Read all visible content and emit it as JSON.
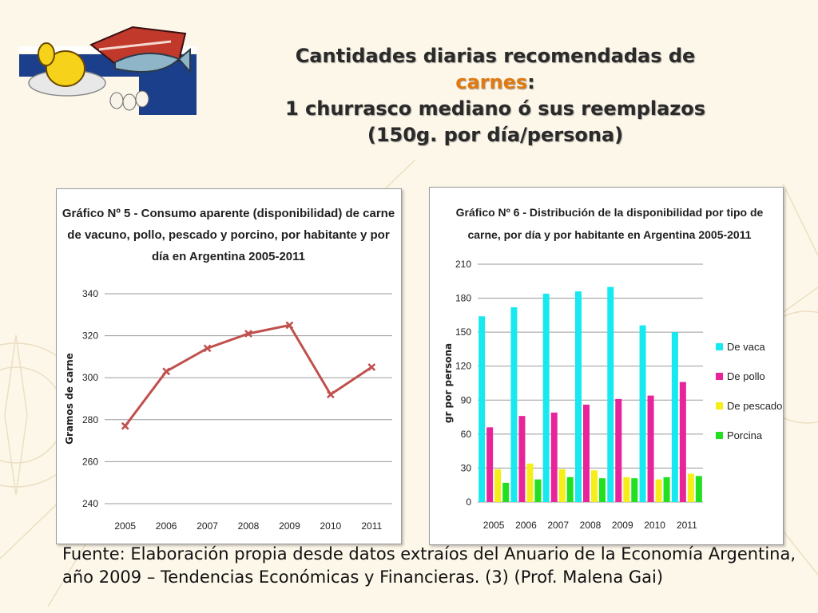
{
  "slide": {
    "title_line1": "Cantidades diarias recomendadas de",
    "title_accent": "carnes",
    "title_colon": ":",
    "title_line3": "1 churrasco mediano ó sus reemplazos",
    "title_line4": "(150g. por día/persona)",
    "source": "Fuente: Elaboración propia desde datos extraíos del Anuario de la Economía Argentina, año 2009 – Tendencias Económicas y Financieras. (3)  (Prof. Malena Gai)"
  },
  "colors": {
    "title_accent": "#e07a10",
    "line_series": "#c0504d",
    "de_vaca": "#18e8f0",
    "de_pollo": "#e8249a",
    "de_pescado": "#f5ee18",
    "porcina": "#20e020",
    "gridline": "#9a9a9a"
  },
  "chart_data": [
    {
      "type": "line",
      "title_lines": [
        "Gráfico Nº 5 - Consumo aparente (disponibilidad) de carne",
        "de vacuno, pollo, pescado y porcino, por habitante y por",
        "día en Argentina 2005-2011"
      ],
      "xlabel": "",
      "ylabel": "Gramos de carne",
      "categories": [
        "2005",
        "2006",
        "2007",
        "2008",
        "2009",
        "2010",
        "2011"
      ],
      "values": [
        277,
        303,
        314,
        321,
        325,
        292,
        305
      ],
      "ylim": [
        240,
        340
      ],
      "yticks": [
        240,
        260,
        280,
        300,
        320,
        340
      ],
      "grid": true
    },
    {
      "type": "bar",
      "title_lines": [
        "Gráfico Nº 6 - Distribución de la disponibilidad por tipo de",
        "carne, por día y por habitante en Argentina 2005-2011"
      ],
      "xlabel": "",
      "ylabel": "gr por persona",
      "categories": [
        "2005",
        "2006",
        "2007",
        "2008",
        "2009",
        "2010",
        "2011"
      ],
      "ylim": [
        0,
        210
      ],
      "yticks": [
        0,
        30,
        60,
        90,
        120,
        150,
        180,
        210
      ],
      "grid": true,
      "legend_position": "right",
      "series": [
        {
          "name": "De vaca",
          "values": [
            164,
            172,
            184,
            186,
            190,
            156,
            150
          ]
        },
        {
          "name": "De pollo",
          "values": [
            66,
            76,
            79,
            86,
            91,
            94,
            106
          ]
        },
        {
          "name": "De pescado",
          "values": [
            29,
            34,
            29,
            28,
            22,
            20,
            25
          ]
        },
        {
          "name": "Porcina",
          "values": [
            17,
            20,
            22,
            21,
            21,
            22,
            23
          ]
        }
      ]
    }
  ]
}
